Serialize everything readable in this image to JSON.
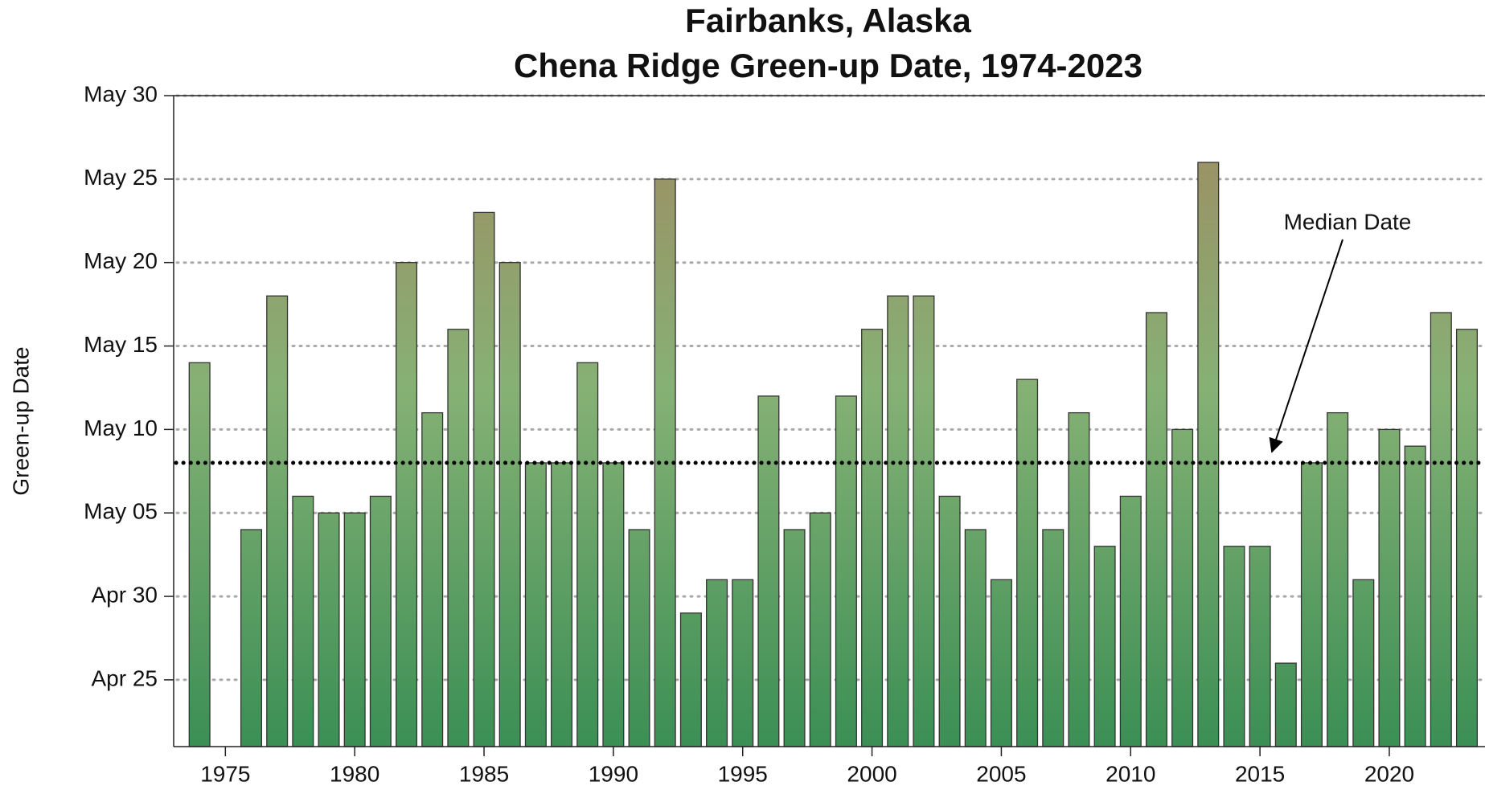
{
  "chart_data": {
    "type": "bar",
    "title": [
      "Fairbanks, Alaska",
      "Chena Ridge Green-up Date, 1974-2023"
    ],
    "y_label": "Green-up Date",
    "x": [
      1974,
      1975,
      1976,
      1977,
      1978,
      1979,
      1980,
      1981,
      1982,
      1983,
      1984,
      1985,
      1986,
      1987,
      1988,
      1989,
      1990,
      1991,
      1992,
      1993,
      1994,
      1995,
      1996,
      1997,
      1998,
      1999,
      2000,
      2001,
      2002,
      2003,
      2004,
      2005,
      2006,
      2007,
      2008,
      2009,
      2010,
      2011,
      2012,
      2013,
      2014,
      2015,
      2016,
      2017,
      2018,
      2019,
      2020,
      2021,
      2022,
      2023
    ],
    "values": [
      134,
      null,
      124,
      138,
      126,
      125,
      125,
      126,
      140,
      131,
      136,
      143,
      140,
      128,
      128,
      134,
      128,
      124,
      145,
      119,
      121,
      121,
      132,
      124,
      125,
      132,
      136,
      138,
      138,
      126,
      124,
      121,
      133,
      124,
      131,
      123,
      126,
      137,
      130,
      146,
      123,
      123,
      116,
      128,
      131,
      121,
      130,
      129,
      137,
      136
    ],
    "gradient": [
      "#a08a62",
      "#86b175",
      "#3b8f55"
    ],
    "bar_edge": "#333333",
    "median": 128,
    "median_color": "#000000",
    "annotation": "Median Date",
    "xlim": [
      1973,
      2023.7
    ],
    "xticks": [
      1975,
      1980,
      1985,
      1990,
      1995,
      2000,
      2005,
      2010,
      2015,
      2020
    ],
    "ylim": [
      111,
      150
    ],
    "yticks": [
      {
        "value": 115,
        "label": "Apr 25"
      },
      {
        "value": 120,
        "label": "Apr 30"
      },
      {
        "value": 125,
        "label": "May 05"
      },
      {
        "value": 130,
        "label": "May 10"
      },
      {
        "value": 135,
        "label": "May 15"
      },
      {
        "value": 140,
        "label": "May 20"
      },
      {
        "value": 145,
        "label": "May 25"
      },
      {
        "value": 150,
        "label": "May 30"
      }
    ],
    "grid": true
  }
}
